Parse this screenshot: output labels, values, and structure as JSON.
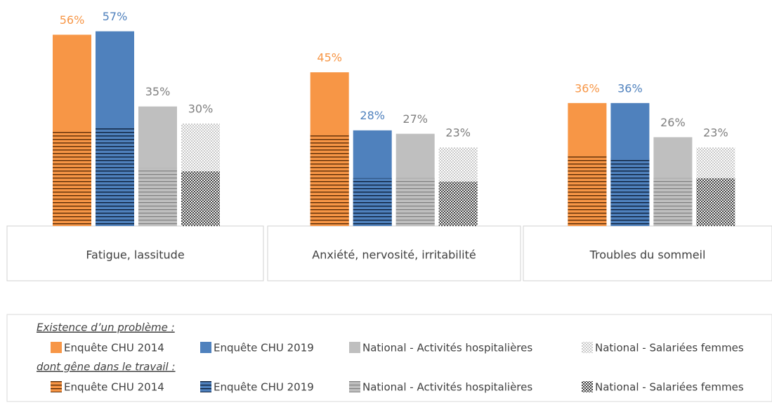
{
  "chart_data": {
    "type": "bar",
    "categories": [
      "Fatigue, lassitude",
      "Anxiété, nervosité, irritabilité",
      "Troubles du sommeil"
    ],
    "ylim": [
      0,
      60
    ],
    "legend": {
      "existence_title": "Existence d’un problème :",
      "gene_title": "dont gêne dans le travail :"
    },
    "series": [
      {
        "name": "Enquête CHU 2014",
        "color": "#f79646",
        "label_color": "#f79646",
        "values": [
          56,
          45,
          36
        ],
        "value_labels": [
          "56%",
          "45%",
          "36%"
        ]
      },
      {
        "name": "Enquête CHU 2019",
        "color": "#4f81bd",
        "label_color": "#4f81bd",
        "values": [
          57,
          28,
          36
        ],
        "value_labels": [
          "57%",
          "28%",
          "36%"
        ]
      },
      {
        "name": "National - Activités hospitalières",
        "color": "#bfbfbf",
        "label_color": "#7f7f7f",
        "values": [
          35,
          27,
          26
        ],
        "value_labels": [
          "35%",
          "27%",
          "26%"
        ]
      },
      {
        "name": "National - Salariées femmes",
        "color": "#d9d9d9",
        "label_color": "#7f7f7f",
        "values": [
          30,
          23,
          23
        ],
        "value_labels": [
          "30%",
          "23%",
          "23%"
        ]
      }
    ],
    "series_gene": [
      {
        "name": "Enquête CHU 2014",
        "values": [
          28,
          27,
          21
        ]
      },
      {
        "name": "Enquête CHU 2019",
        "values": [
          29,
          14,
          20
        ]
      },
      {
        "name": "National - Activités hospitalières",
        "values": [
          17,
          14,
          14
        ]
      },
      {
        "name": "National - Salariées femmes",
        "values": [
          16,
          13,
          14
        ]
      }
    ]
  }
}
